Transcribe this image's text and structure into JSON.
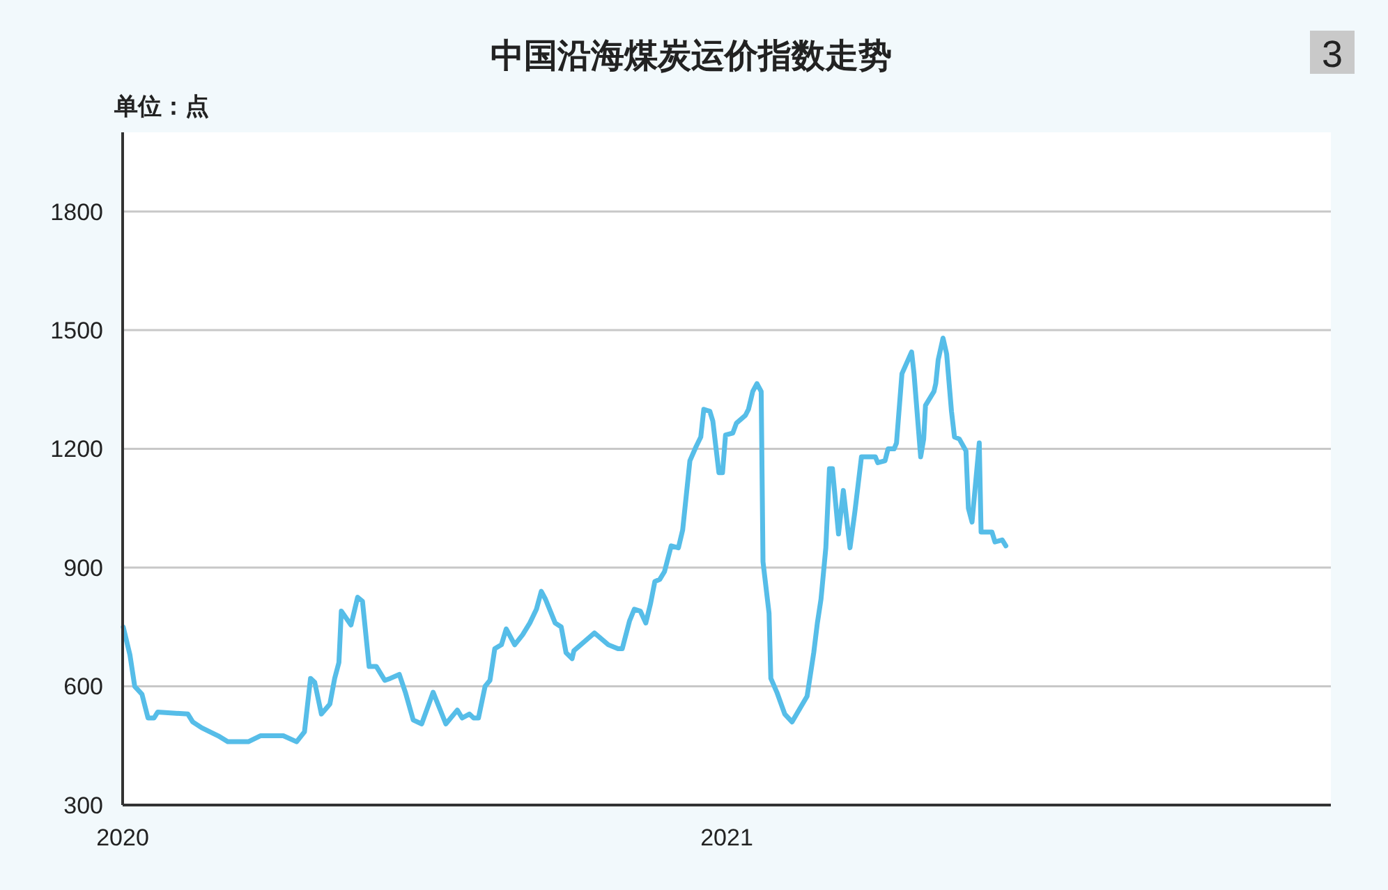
{
  "chart_data": {
    "type": "line",
    "title": "中国沿海煤炭运价指数走势",
    "ylabel": "单位：点",
    "annotations": [
      "3"
    ],
    "xlim": [
      2020,
      2022
    ],
    "xticks": [
      2020,
      2021
    ],
    "ylim": [
      300,
      2000
    ],
    "yticks": [
      300,
      600,
      900,
      1200,
      1500,
      1800
    ],
    "grid": "y",
    "line_style": "solid",
    "marker": "none",
    "series": [
      {
        "color": "#56bde8",
        "x": [
          2020.001,
          2020.012,
          2020.02,
          2020.032,
          2020.042,
          2020.052,
          2020.058,
          2020.108,
          2020.116,
          2020.131,
          2020.158,
          2020.174,
          2020.208,
          2020.228,
          2020.266,
          2020.288,
          2020.301,
          2020.311,
          2020.318,
          2020.329,
          2020.343,
          2020.351,
          2020.358,
          2020.362,
          2020.378,
          2020.389,
          2020.397,
          2020.408,
          2020.42,
          2020.434,
          2020.443,
          2020.458,
          2020.468,
          2020.481,
          2020.495,
          2020.514,
          2020.535,
          2020.554,
          2020.562,
          2020.574,
          2020.581,
          2020.589,
          2020.6,
          2020.608,
          2020.616,
          2020.627,
          2020.635,
          2020.649,
          2020.662,
          2020.674,
          2020.685,
          2020.693,
          2020.7,
          2020.716,
          2020.726,
          2020.734,
          2020.744,
          2020.747,
          2020.781,
          2020.804,
          2020.82,
          2020.827,
          2020.839,
          2020.847,
          2020.857,
          2020.866,
          2020.874,
          2020.881,
          2020.889,
          2020.897,
          2020.908,
          2020.92,
          2020.927,
          2020.939,
          2020.949,
          2020.957,
          2020.962,
          2020.972,
          2020.977,
          2020.987,
          2020.993,
          2020.998,
          2021.01,
          2021.016,
          2021.031,
          2021.036,
          2021.043,
          2021.05,
          2021.057,
          2021.06,
          2021.07,
          2021.073,
          2021.083,
          2021.096,
          2021.108,
          2021.133,
          2021.144,
          2021.15,
          2021.156,
          2021.164,
          2021.17,
          2021.175,
          2021.185,
          2021.193,
          2021.204,
          2021.212,
          2021.223,
          2021.235,
          2021.246,
          2021.25,
          2021.262,
          2021.267,
          2021.277,
          2021.281,
          2021.29,
          2021.306,
          2021.31,
          2021.321,
          2021.326,
          2021.329,
          2021.343,
          2021.346,
          2021.35,
          2021.358,
          2021.364,
          2021.372,
          2021.377,
          2021.385,
          2021.396,
          2021.4,
          2021.406,
          2021.418,
          2021.421,
          2021.439,
          2021.444,
          2021.456,
          2021.462
        ],
        "values": [
          750,
          680,
          600,
          580,
          520,
          520,
          535,
          530,
          510,
          495,
          475,
          460,
          460,
          475,
          475,
          460,
          485,
          620,
          610,
          530,
          555,
          620,
          660,
          790,
          755,
          825,
          815,
          650,
          650,
          615,
          620,
          630,
          585,
          515,
          505,
          585,
          505,
          540,
          520,
          530,
          520,
          520,
          600,
          615,
          695,
          705,
          745,
          705,
          730,
          760,
          795,
          840,
          820,
          760,
          750,
          685,
          670,
          690,
          735,
          705,
          695,
          695,
          765,
          795,
          790,
          760,
          810,
          865,
          870,
          890,
          955,
          950,
          995,
          1170,
          1205,
          1230,
          1300,
          1295,
          1270,
          1140,
          1140,
          1235,
          1240,
          1265,
          1285,
          1300,
          1345,
          1365,
          1345,
          915,
          785,
          620,
          585,
          530,
          510,
          575,
          685,
          760,
          820,
          950,
          1150,
          1150,
          985,
          1095,
          950,
          1040,
          1180,
          1180,
          1180,
          1165,
          1170,
          1200,
          1200,
          1215,
          1390,
          1445,
          1390,
          1180,
          1225,
          1310,
          1345,
          1365,
          1425,
          1480,
          1440,
          1295,
          1230,
          1225,
          1195,
          1050,
          1015,
          1215,
          990,
          990,
          965,
          970,
          955
        ]
      }
    ]
  }
}
